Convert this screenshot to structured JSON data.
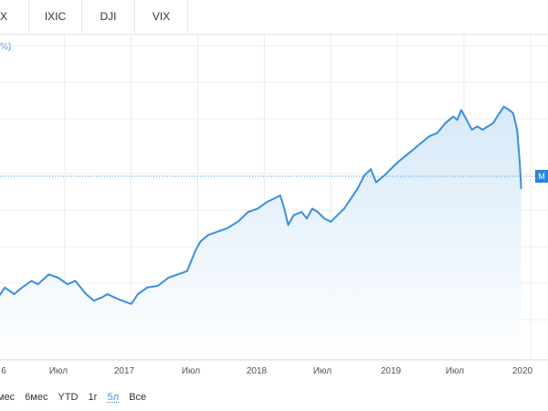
{
  "tabs": [
    {
      "label": "X",
      "active": false
    },
    {
      "label": "IXIC",
      "active": false
    },
    {
      "label": "DJI",
      "active": false
    },
    {
      "label": "VIX",
      "active": false
    }
  ],
  "chart": {
    "partial_label": "%)",
    "price_flag": "M",
    "colors": {
      "line": "#3a8fdd",
      "fill_top": "#d6e9f8",
      "fill_bottom": "#ffffff",
      "dotted": "#3a8fdd",
      "grid": "#ececec"
    }
  },
  "ranges": [
    {
      "label": "мес",
      "active": false
    },
    {
      "label": "6мес",
      "active": false
    },
    {
      "label": "YTD",
      "active": false
    },
    {
      "label": "1г",
      "active": false
    },
    {
      "label": "5л",
      "active": true
    },
    {
      "label": "Все",
      "active": false
    }
  ],
  "chart_data": {
    "type": "area",
    "x_ticks": [
      "6",
      "Июл",
      "2017",
      "Июл",
      "2018",
      "Июл",
      "2019",
      "Июл",
      "2020"
    ],
    "series": [
      {
        "values": [
          [
            0,
            49
          ],
          [
            0.05,
            52
          ],
          [
            0.12,
            50
          ],
          [
            0.18,
            52
          ],
          [
            0.25,
            54
          ],
          [
            0.3,
            53
          ],
          [
            0.38,
            56
          ],
          [
            0.45,
            55
          ],
          [
            0.52,
            53
          ],
          [
            0.58,
            54
          ],
          [
            0.62,
            52
          ],
          [
            0.66,
            50
          ],
          [
            0.72,
            48
          ],
          [
            0.78,
            49
          ],
          [
            0.82,
            50
          ],
          [
            0.9,
            48.5
          ],
          [
            1.0,
            47
          ],
          [
            1.05,
            50
          ],
          [
            1.12,
            52
          ],
          [
            1.2,
            52.5
          ],
          [
            1.28,
            55
          ],
          [
            1.35,
            56
          ],
          [
            1.42,
            57
          ],
          [
            1.48,
            63
          ],
          [
            1.52,
            66
          ],
          [
            1.58,
            68
          ],
          [
            1.65,
            69
          ],
          [
            1.72,
            70
          ],
          [
            1.8,
            72
          ],
          [
            1.88,
            75
          ],
          [
            1.95,
            76
          ],
          [
            2.02,
            78
          ],
          [
            2.07,
            79
          ],
          [
            2.12,
            80
          ],
          [
            2.15,
            76
          ],
          [
            2.18,
            71
          ],
          [
            2.22,
            74
          ],
          [
            2.28,
            75
          ],
          [
            2.32,
            73
          ],
          [
            2.36,
            76
          ],
          [
            2.4,
            75
          ],
          [
            2.45,
            73
          ],
          [
            2.5,
            72
          ],
          [
            2.55,
            74
          ],
          [
            2.6,
            76
          ],
          [
            2.65,
            79
          ],
          [
            2.7,
            82
          ],
          [
            2.75,
            86
          ],
          [
            2.8,
            88
          ],
          [
            2.84,
            84
          ],
          [
            2.9,
            86
          ],
          [
            2.95,
            88
          ],
          [
            3.0,
            90
          ],
          [
            3.06,
            92
          ],
          [
            3.12,
            94
          ],
          [
            3.18,
            96
          ],
          [
            3.24,
            98
          ],
          [
            3.3,
            99
          ],
          [
            3.36,
            102
          ],
          [
            3.42,
            104
          ],
          [
            3.45,
            103
          ],
          [
            3.48,
            106
          ],
          [
            3.52,
            103
          ],
          [
            3.56,
            100
          ],
          [
            3.6,
            101
          ],
          [
            3.64,
            100
          ],
          [
            3.68,
            101
          ],
          [
            3.72,
            102
          ],
          [
            3.75,
            104
          ],
          [
            3.8,
            107
          ],
          [
            3.84,
            106
          ],
          [
            3.87,
            105
          ],
          [
            3.9,
            100
          ],
          [
            3.92,
            90
          ],
          [
            3.93,
            82
          ]
        ]
      }
    ]
  }
}
